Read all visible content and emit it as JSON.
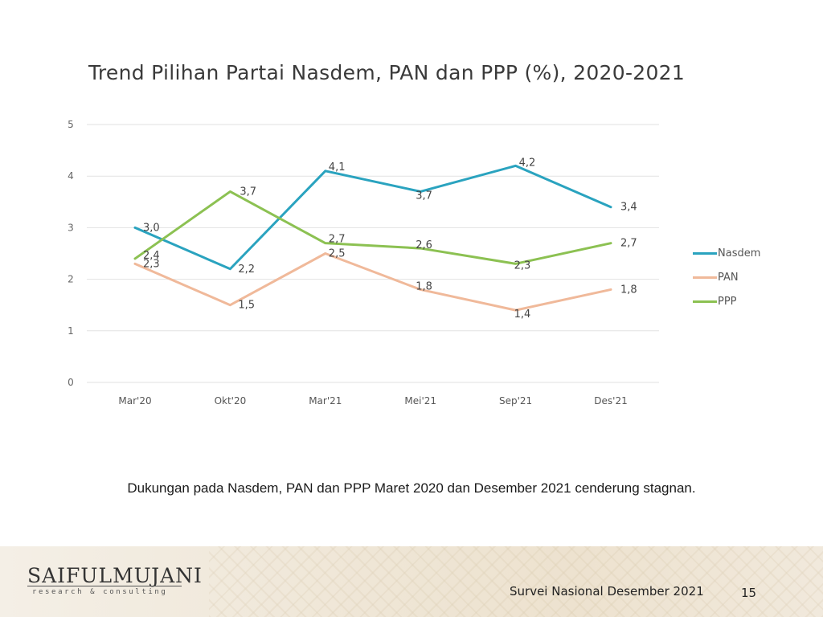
{
  "slide": {
    "title": "Trend Pilihan Partai Nasdem, PAN dan PPP (%), 2020-2021",
    "caption": "Dukungan pada Nasdem, PAN dan PPP Maret 2020 dan Desember 2021 cenderung stagnan.",
    "footer_text": "Survei Nasional Desember 2021",
    "page_number": "15",
    "logo_main": "SAIFULMUJANI",
    "logo_sub": "research & consulting"
  },
  "chart_data": {
    "type": "line",
    "title": "Trend Pilihan Partai Nasdem, PAN dan PPP (%), 2020-2021",
    "categories": [
      "Mar'20",
      "Okt'20",
      "Mar'21",
      "Mei'21",
      "Sep'21",
      "Des'21"
    ],
    "ylim": [
      0,
      5
    ],
    "yticks": [
      "0",
      "1",
      "2",
      "3",
      "4",
      "5"
    ],
    "grid": true,
    "legend_position": "right",
    "series": [
      {
        "name": "Nasdem",
        "color": "#2aa3bf",
        "values": [
          3.0,
          2.2,
          4.1,
          3.7,
          4.2,
          3.4
        ],
        "labels": [
          "3,0",
          "2,2",
          "4,1",
          "3,7",
          "4,2",
          "3,4"
        ]
      },
      {
        "name": "PAN",
        "color": "#f0b99a",
        "values": [
          2.3,
          1.5,
          2.5,
          1.8,
          1.4,
          1.8
        ],
        "labels": [
          "2,3",
          "1,5",
          "2,5",
          "1,8",
          "1,4",
          "1,8"
        ]
      },
      {
        "name": "PPP",
        "color": "#8cc152",
        "values": [
          2.4,
          3.7,
          2.7,
          2.6,
          2.3,
          2.7
        ],
        "labels": [
          "2,4",
          "3,7",
          "2,7",
          "2,6",
          "2,3",
          "2,7"
        ]
      }
    ]
  }
}
